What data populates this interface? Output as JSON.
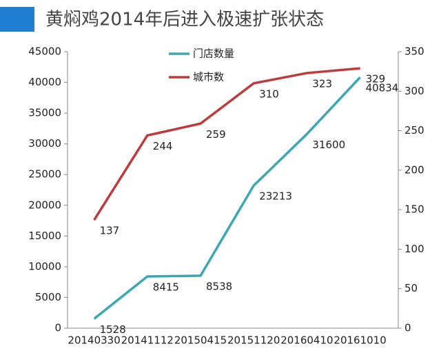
{
  "chart_data": {
    "type": "line",
    "title": "黄焖鸡2014年后进入极速扩张状态",
    "categories": [
      "20140330",
      "20141112",
      "20150415",
      "20151120",
      "20160410",
      "20161010"
    ],
    "series": [
      {
        "name": "门店数量",
        "color": "#3aa8b0",
        "values": [
          1528,
          8415,
          8538,
          23213,
          31600,
          40834
        ]
      },
      {
        "name": "城市数",
        "color": "#c0393b",
        "values": [
          137,
          244,
          259,
          310,
          323,
          329
        ],
        "axis": "y2"
      }
    ],
    "ylim": [
      0,
      45000
    ],
    "yticks": [
      0,
      5000,
      10000,
      15000,
      20000,
      25000,
      30000,
      35000,
      40000,
      45000
    ],
    "y2lim": [
      0,
      350
    ],
    "y2ticks": [
      0,
      50,
      100,
      150,
      200,
      250,
      300,
      350
    ],
    "grid": false
  }
}
